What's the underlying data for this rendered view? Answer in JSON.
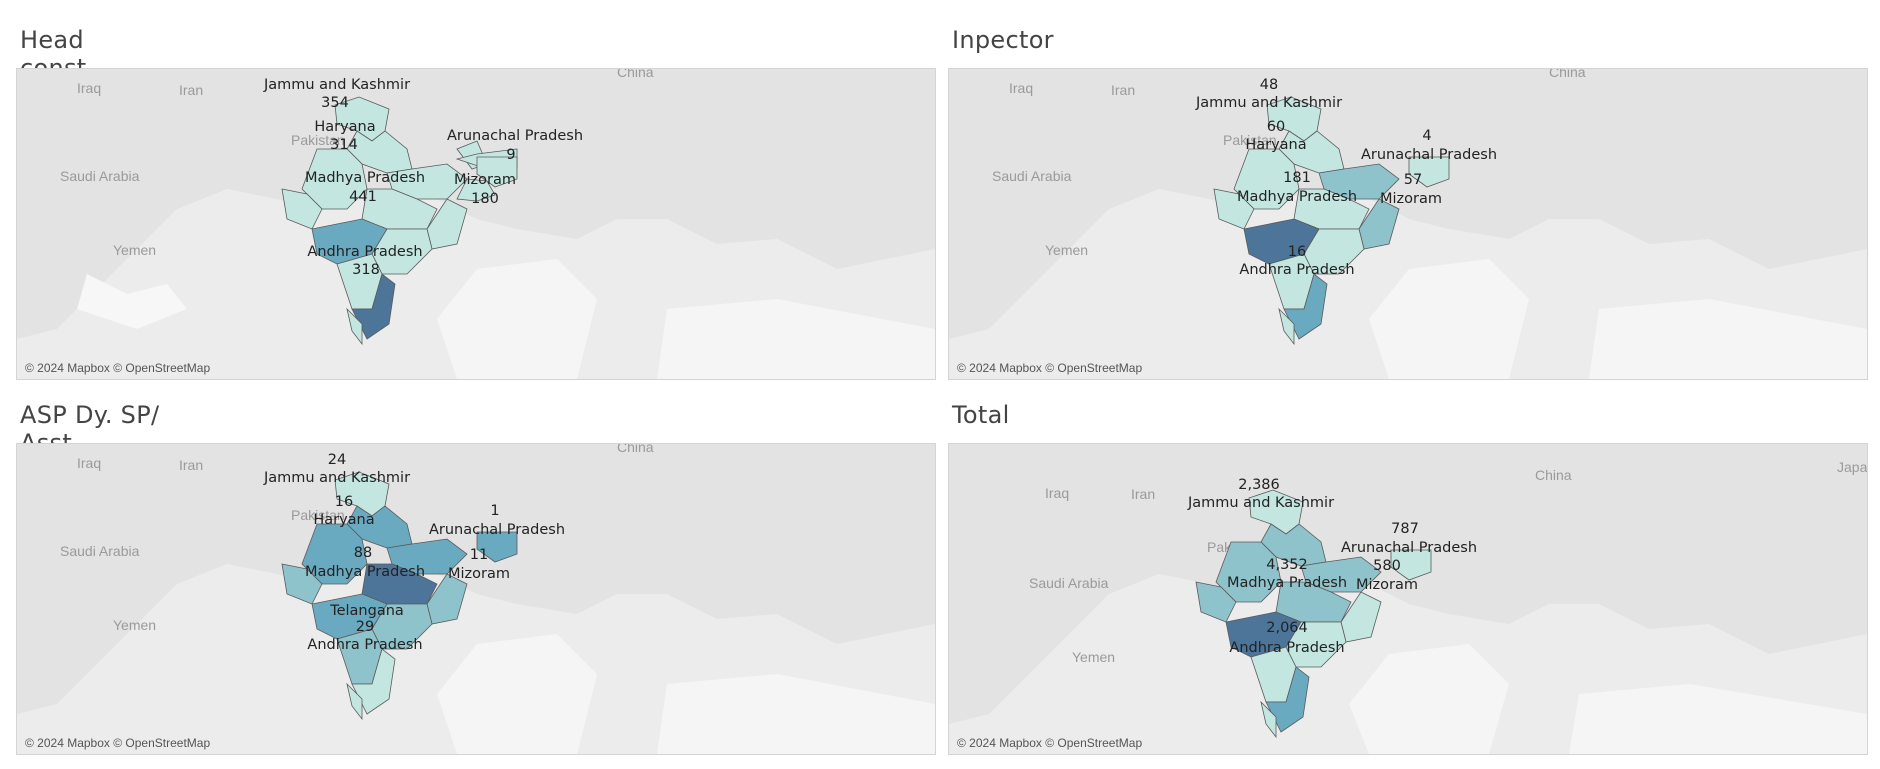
{
  "map_attribution": "© 2024 Mapbox © OpenStreetMap",
  "background_countries": [
    "Iraq",
    "Iran",
    "China",
    "Pakistan",
    "Saudi Arabia",
    "Yemen",
    "Japa"
  ],
  "color_scale": {
    "light": "#c4e6e1",
    "mid": "#8fc3cc",
    "medium_dark": "#6aaac0",
    "dark": "#4c7599"
  },
  "panels": [
    {
      "title": "Head const.",
      "labels": [
        {
          "state": "Jammu and Kashmir",
          "value": "354"
        },
        {
          "state": "Haryana",
          "value": "314"
        },
        {
          "state": "Madhya Pradesh",
          "value": "441"
        },
        {
          "state": "Andhra Pradesh",
          "value": "318"
        },
        {
          "state": "Arunachal Pradesh",
          "value": "9"
        },
        {
          "state": "Mizoram",
          "value": "180"
        }
      ]
    },
    {
      "title": "Inpector",
      "labels": [
        {
          "state": "Jammu and Kashmir",
          "value": "48"
        },
        {
          "state": "Haryana",
          "value": "60"
        },
        {
          "state": "Madhya Pradesh",
          "value": "181"
        },
        {
          "state": "Andhra Pradesh",
          "value": "16"
        },
        {
          "state": "Arunachal Pradesh",
          "value": "4"
        },
        {
          "state": "Mizoram",
          "value": "57"
        }
      ]
    },
    {
      "title": "ASP Dy. SP/ Asst commissoner",
      "labels": [
        {
          "state": "Jammu and Kashmir",
          "value": "24"
        },
        {
          "state": "Haryana",
          "value": "16"
        },
        {
          "state": "Madhya Pradesh",
          "value": "88"
        },
        {
          "state": "Telangana",
          "value": "29"
        },
        {
          "state": "Andhra Pradesh",
          "value": ""
        },
        {
          "state": "Arunachal Pradesh",
          "value": "1"
        },
        {
          "state": "Mizoram",
          "value": "11"
        }
      ]
    },
    {
      "title": "Total",
      "labels": [
        {
          "state": "Jammu and Kashmir",
          "value": "2,386"
        },
        {
          "state": "Madhya Pradesh",
          "value": "4,352"
        },
        {
          "state": "Andhra Pradesh",
          "value": "2,064"
        },
        {
          "state": "Arunachal Pradesh",
          "value": "787"
        },
        {
          "state": "Mizoram",
          "value": "580"
        }
      ]
    }
  ]
}
